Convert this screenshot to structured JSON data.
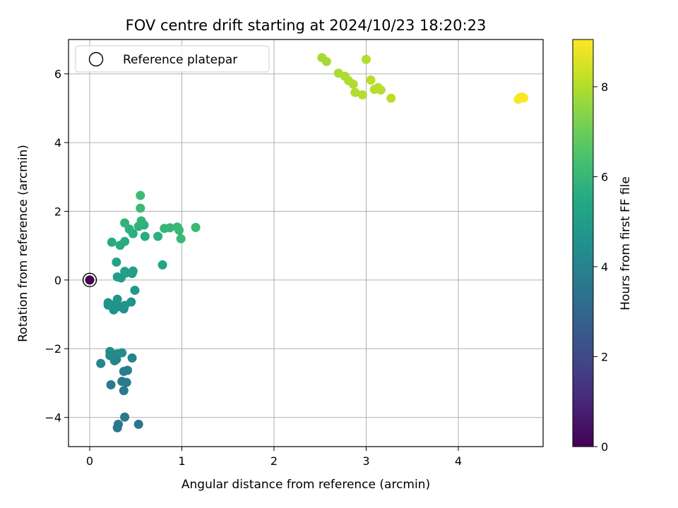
{
  "chart_data": {
    "type": "scatter",
    "title": "FOV centre drift starting at 2024/10/23 18:20:23",
    "xlabel": "Angular distance from reference (arcmin)",
    "ylabel": "Rotation from reference (arcmin)",
    "xlim": [
      -0.23,
      4.92
    ],
    "ylim": [
      -4.85,
      7.0
    ],
    "xticks": [
      0,
      1,
      2,
      3,
      4
    ],
    "yticks": [
      -4,
      -2,
      0,
      2,
      4,
      6
    ],
    "xtick_labels": [
      "0",
      "1",
      "2",
      "3",
      "4"
    ],
    "ytick_labels": [
      "−4",
      "−2",
      "0",
      "2",
      "4",
      "6"
    ],
    "grid": true,
    "legend": {
      "placement": "top-left",
      "entries": [
        "Reference platepar"
      ]
    },
    "colorbar": {
      "label": "Hours from first FF file",
      "colormap": "viridis",
      "range": [
        0,
        9.05
      ],
      "ticks": [
        0,
        2,
        4,
        6,
        8
      ],
      "tick_labels": [
        "0",
        "2",
        "4",
        "6",
        "8"
      ]
    },
    "reference": {
      "x": 0,
      "y": 0,
      "hours": 0
    },
    "points": [
      {
        "x": 0.53,
        "y": -4.2,
        "h": 3.6
      },
      {
        "x": 0.31,
        "y": -4.2,
        "h": 3.6
      },
      {
        "x": 0.3,
        "y": -4.3,
        "h": 3.6
      },
      {
        "x": 0.38,
        "y": -3.99,
        "h": 3.65
      },
      {
        "x": 0.37,
        "y": -3.22,
        "h": 3.7
      },
      {
        "x": 0.23,
        "y": -3.05,
        "h": 3.7
      },
      {
        "x": 0.35,
        "y": -2.95,
        "h": 3.75
      },
      {
        "x": 0.4,
        "y": -2.98,
        "h": 3.75
      },
      {
        "x": 0.37,
        "y": -2.66,
        "h": 3.8
      },
      {
        "x": 0.41,
        "y": -2.63,
        "h": 3.8
      },
      {
        "x": 0.12,
        "y": -2.43,
        "h": 4.1
      },
      {
        "x": 0.27,
        "y": -2.35,
        "h": 4.0
      },
      {
        "x": 0.29,
        "y": -2.31,
        "h": 4.0
      },
      {
        "x": 0.46,
        "y": -2.27,
        "h": 4.05
      },
      {
        "x": 0.22,
        "y": -2.2,
        "h": 4.2
      },
      {
        "x": 0.26,
        "y": -2.2,
        "h": 4.2
      },
      {
        "x": 0.3,
        "y": -2.15,
        "h": 4.2
      },
      {
        "x": 0.22,
        "y": -2.08,
        "h": 4.3
      },
      {
        "x": 0.35,
        "y": -2.12,
        "h": 4.3
      },
      {
        "x": 0.26,
        "y": -0.87,
        "h": 4.5
      },
      {
        "x": 0.37,
        "y": -0.84,
        "h": 4.55
      },
      {
        "x": 0.33,
        "y": -0.78,
        "h": 4.55
      },
      {
        "x": 0.2,
        "y": -0.73,
        "h": 4.6
      },
      {
        "x": 0.27,
        "y": -0.72,
        "h": 4.6
      },
      {
        "x": 0.38,
        "y": -0.74,
        "h": 4.6
      },
      {
        "x": 0.2,
        "y": -0.66,
        "h": 4.65
      },
      {
        "x": 0.45,
        "y": -0.64,
        "h": 4.65
      },
      {
        "x": 0.3,
        "y": -0.56,
        "h": 4.7
      },
      {
        "x": 0.49,
        "y": -0.3,
        "h": 4.8
      },
      {
        "x": 0.3,
        "y": 0.09,
        "h": 5.0
      },
      {
        "x": 0.34,
        "y": 0.06,
        "h": 5.0
      },
      {
        "x": 0.39,
        "y": 0.2,
        "h": 5.1
      },
      {
        "x": 0.46,
        "y": 0.19,
        "h": 5.1
      },
      {
        "x": 0.38,
        "y": 0.25,
        "h": 5.15
      },
      {
        "x": 0.47,
        "y": 0.26,
        "h": 5.15
      },
      {
        "x": 0.29,
        "y": 0.52,
        "h": 5.2
      },
      {
        "x": 0.79,
        "y": 0.44,
        "h": 5.3
      },
      {
        "x": 0.24,
        "y": 1.1,
        "h": 5.5
      },
      {
        "x": 0.33,
        "y": 1.01,
        "h": 5.5
      },
      {
        "x": 0.38,
        "y": 1.12,
        "h": 5.55
      },
      {
        "x": 0.6,
        "y": 1.27,
        "h": 5.6
      },
      {
        "x": 0.47,
        "y": 1.35,
        "h": 5.65
      },
      {
        "x": 0.74,
        "y": 1.27,
        "h": 5.7
      },
      {
        "x": 0.43,
        "y": 1.48,
        "h": 5.75
      },
      {
        "x": 0.53,
        "y": 1.56,
        "h": 5.8
      },
      {
        "x": 0.59,
        "y": 1.6,
        "h": 5.8
      },
      {
        "x": 0.38,
        "y": 1.66,
        "h": 5.85
      },
      {
        "x": 0.56,
        "y": 1.72,
        "h": 5.9
      },
      {
        "x": 0.81,
        "y": 1.5,
        "h": 5.95
      },
      {
        "x": 0.87,
        "y": 1.52,
        "h": 5.95
      },
      {
        "x": 0.95,
        "y": 1.54,
        "h": 6.0
      },
      {
        "x": 0.97,
        "y": 1.45,
        "h": 6.05
      },
      {
        "x": 0.99,
        "y": 1.2,
        "h": 6.05
      },
      {
        "x": 1.15,
        "y": 1.53,
        "h": 6.1
      },
      {
        "x": 0.55,
        "y": 2.09,
        "h": 6.1
      },
      {
        "x": 0.55,
        "y": 2.46,
        "h": 6.15
      },
      {
        "x": 2.52,
        "y": 6.47,
        "h": 7.85
      },
      {
        "x": 2.57,
        "y": 6.36,
        "h": 7.85
      },
      {
        "x": 2.7,
        "y": 6.02,
        "h": 7.9
      },
      {
        "x": 2.77,
        "y": 5.93,
        "h": 7.9
      },
      {
        "x": 2.81,
        "y": 5.8,
        "h": 7.95
      },
      {
        "x": 2.86,
        "y": 5.7,
        "h": 7.95
      },
      {
        "x": 2.88,
        "y": 5.46,
        "h": 8.0
      },
      {
        "x": 2.96,
        "y": 5.39,
        "h": 8.0
      },
      {
        "x": 3.0,
        "y": 6.42,
        "h": 8.0
      },
      {
        "x": 3.05,
        "y": 5.82,
        "h": 8.05
      },
      {
        "x": 3.09,
        "y": 5.55,
        "h": 8.05
      },
      {
        "x": 3.13,
        "y": 5.6,
        "h": 8.05
      },
      {
        "x": 3.16,
        "y": 5.53,
        "h": 8.05
      },
      {
        "x": 3.27,
        "y": 5.29,
        "h": 8.1
      },
      {
        "x": 4.65,
        "y": 5.26,
        "h": 9.0
      },
      {
        "x": 4.67,
        "y": 5.31,
        "h": 9.0
      },
      {
        "x": 4.69,
        "y": 5.33,
        "h": 9.0
      },
      {
        "x": 4.71,
        "y": 5.3,
        "h": 9.0
      }
    ]
  }
}
